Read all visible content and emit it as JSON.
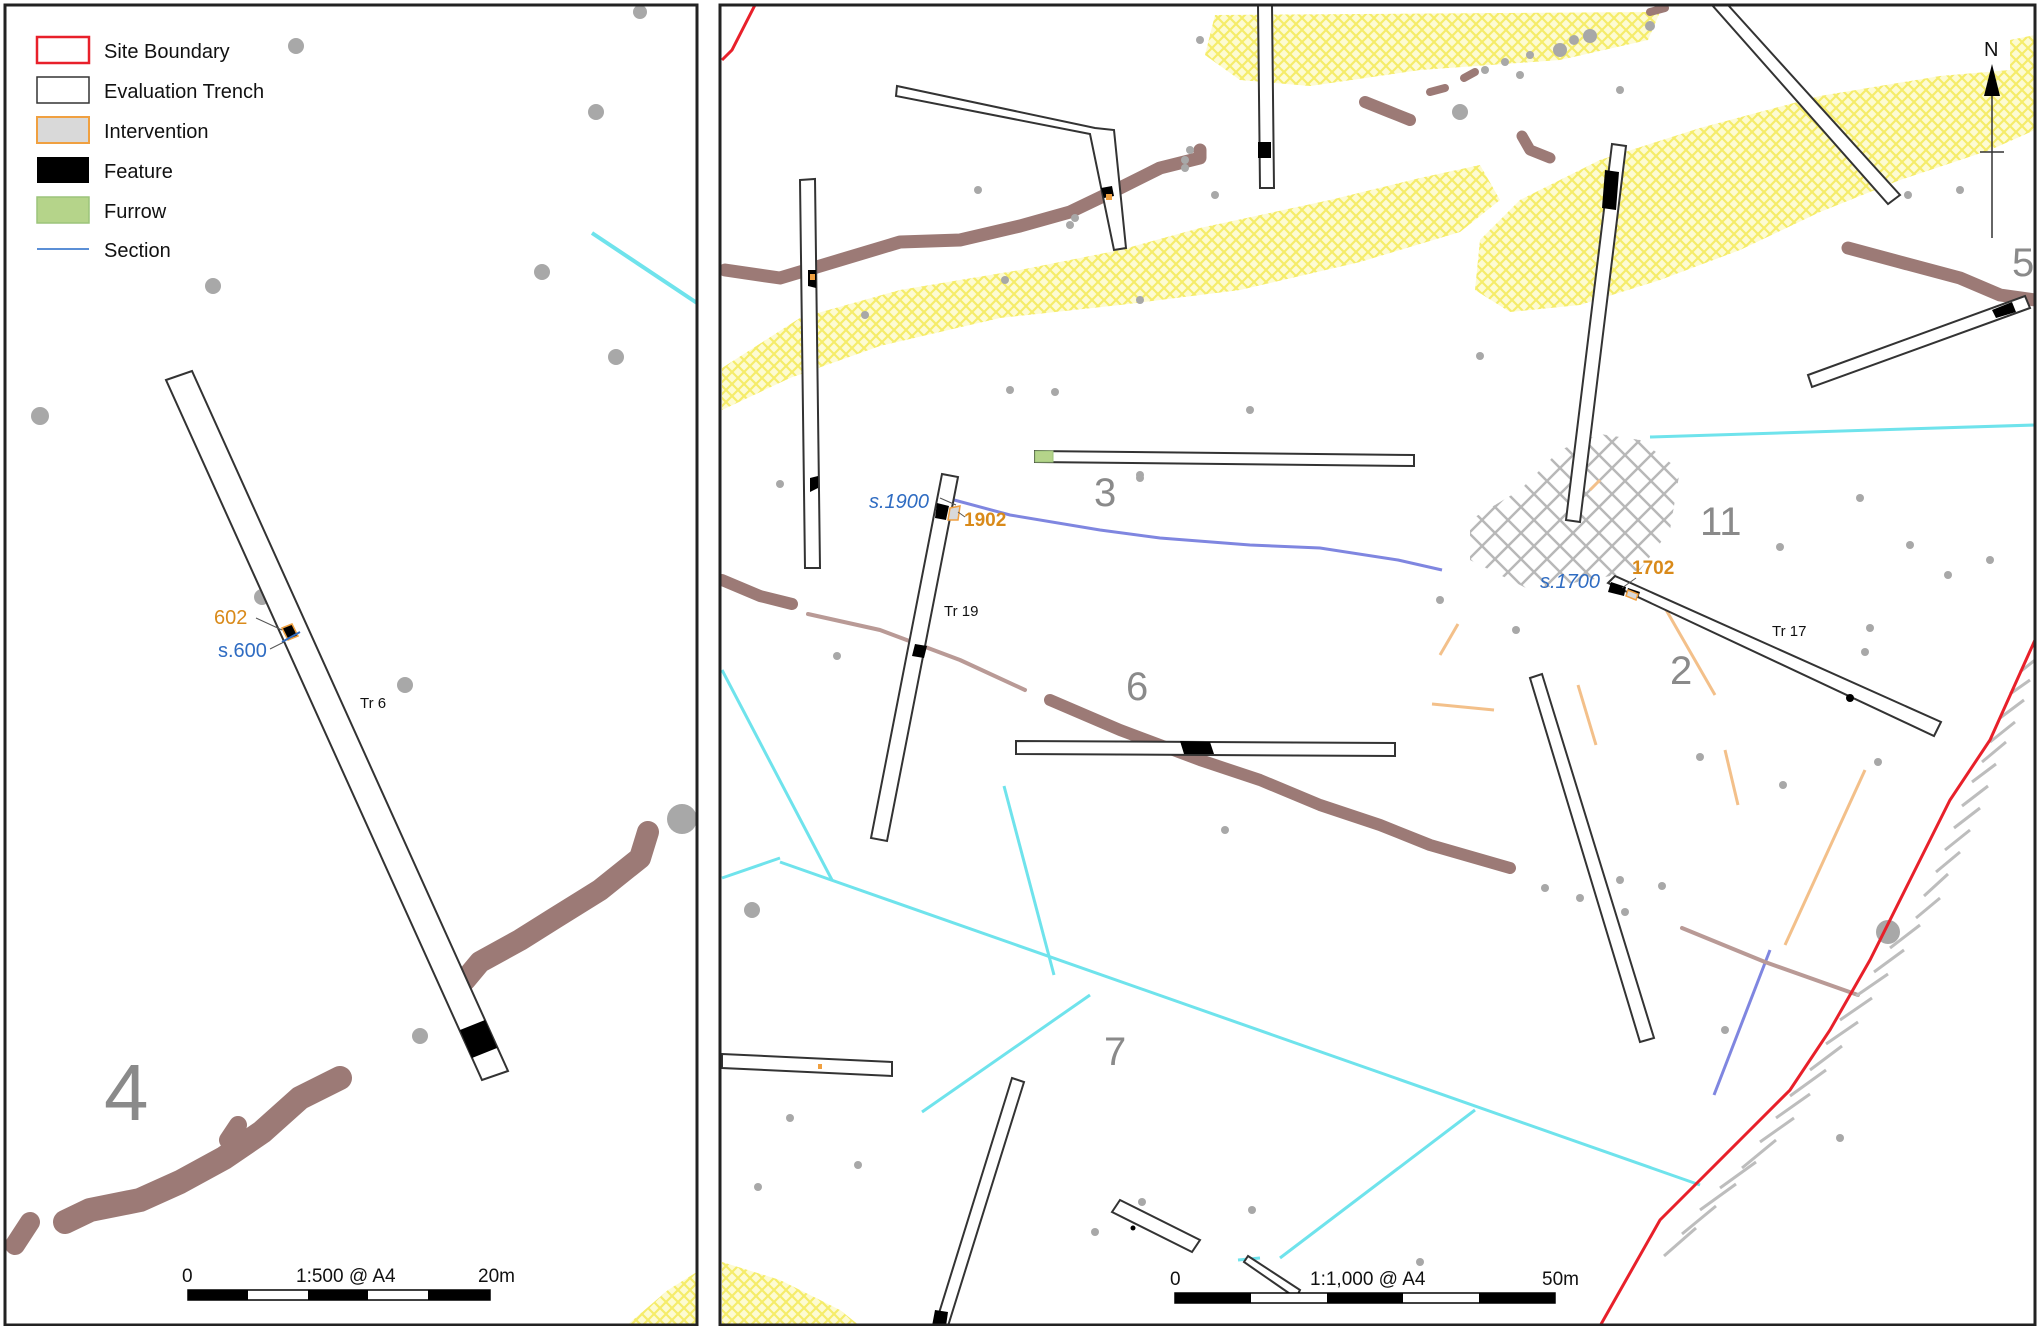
{
  "legend": {
    "items": [
      {
        "label": "Site Boundary",
        "symbol": "site-boundary",
        "stroke": "#e8202a",
        "fill": "#ffffff"
      },
      {
        "label": "Evaluation Trench",
        "symbol": "evaluation-trench",
        "stroke": "#333333",
        "fill": "#ffffff"
      },
      {
        "label": "Intervention",
        "symbol": "intervention",
        "stroke": "#f0a040",
        "fill": "#d9d9d9"
      },
      {
        "label": "Feature",
        "symbol": "feature",
        "stroke": "#000000",
        "fill": "#000000"
      },
      {
        "label": "Furrow",
        "symbol": "furrow",
        "stroke": "#9cc47a",
        "fill": "#b5d48a"
      },
      {
        "label": "Section",
        "symbol": "section-line",
        "stroke": "#5b8fd6",
        "fill": "none"
      }
    ]
  },
  "left_map": {
    "area_number": "4",
    "trench_label": "Tr 6",
    "intervention_label": "602",
    "section_label": "s.600",
    "scale": {
      "start": "0",
      "middle": "1:500 @ A4",
      "end": "20m"
    }
  },
  "right_map": {
    "area_numbers": [
      "3",
      "6",
      "7",
      "11",
      "2",
      "5"
    ],
    "trench_labels": [
      "Tr 19",
      "Tr 17"
    ],
    "section_labels": [
      "s.1900",
      "s.1700"
    ],
    "intervention_labels": [
      "1902",
      "1702"
    ],
    "north_label": "N",
    "scale": {
      "start": "0",
      "middle": "1:1,000 @ A4",
      "end": "50m"
    }
  },
  "colors": {
    "frame": "#222222",
    "trench_outline": "#333333",
    "furrow_band": "#9c7a76",
    "geology_hatch": "#f7f07a",
    "cyan_ditch": "#6fe3ec",
    "section_line": "#5b8fd6",
    "intervention_orange": "#f0a040",
    "intervention_label": "#d98a1a",
    "section_label": "#2f6cc2",
    "area_number": "#8a8a8a",
    "site_boundary": "#e8202a",
    "grey_dot": "#a8a8a8",
    "grey_hatch": "#b8b8b8"
  }
}
